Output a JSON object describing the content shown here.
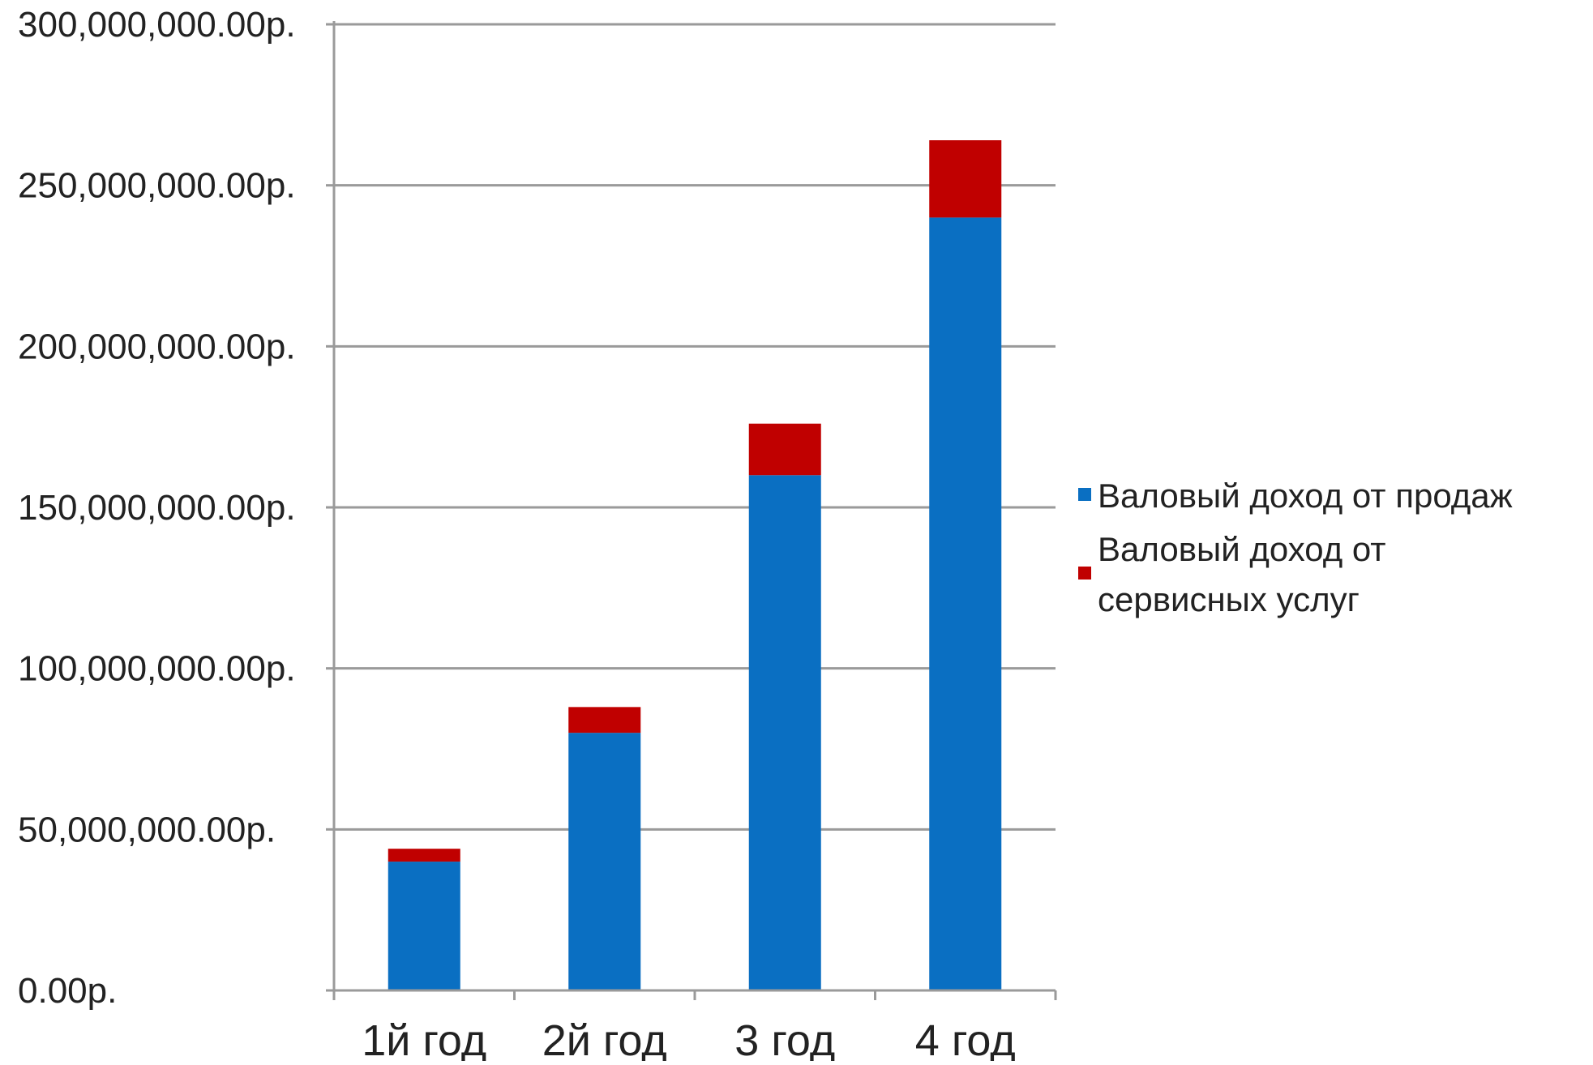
{
  "chart_data": {
    "type": "bar",
    "stacked": true,
    "title": "",
    "xlabel": "",
    "ylabel": "",
    "categories": [
      "1й год",
      "2й год",
      "3 год",
      "4 год"
    ],
    "series": [
      {
        "name": "Валовый доход от продаж",
        "color": "#0a6fc2",
        "values": [
          40000000,
          80000000,
          160000000,
          240000000
        ]
      },
      {
        "name": "Валовый доход от сервисных услуг",
        "color": "#c00000",
        "values": [
          4000000,
          8000000,
          16000000,
          24000000
        ]
      }
    ],
    "ylim": [
      0,
      300000000
    ],
    "y_ticks": [
      0,
      50000000,
      100000000,
      150000000,
      200000000,
      250000000,
      300000000
    ],
    "y_tick_labels": [
      "0.00р.",
      "50,000,000.00р.",
      "100,000,000.00р.",
      "150,000,000.00р.",
      "200,000,000.00р.",
      "250,000,000.00р.",
      "300,000,000.00р."
    ],
    "legend_lines": [
      [
        "Валовый доход от продаж"
      ],
      [
        "Валовый доход от",
        "сервисных услуг"
      ]
    ],
    "grid": true,
    "legend_position": "right"
  }
}
